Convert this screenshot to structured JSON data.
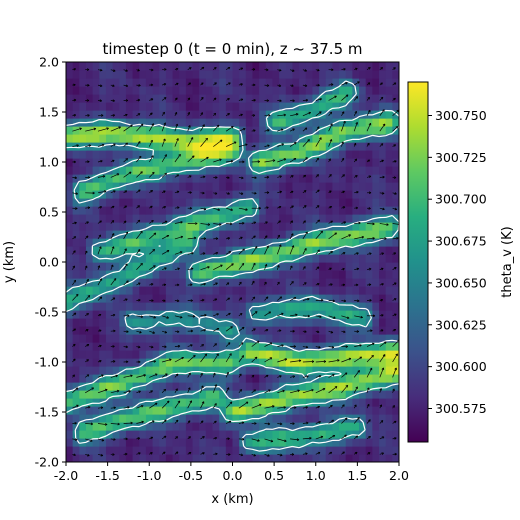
{
  "chart_data": {
    "type": "heatmap",
    "title": "timestep 0 (t = 0 min), z ~ 37.5 m",
    "xlabel": "x (km)",
    "ylabel": "y (km)",
    "xlim": [
      -2.0,
      2.0
    ],
    "ylim": [
      -2.0,
      2.0
    ],
    "x_ticks": [
      "-2.0",
      "-1.5",
      "-1.0",
      "-0.5",
      "0.0",
      "0.5",
      "1.0",
      "1.5",
      "2.0"
    ],
    "y_ticks": [
      "-2.0",
      "-1.5",
      "-1.0",
      "-0.5",
      "0.0",
      "0.5",
      "1.0",
      "1.5",
      "2.0"
    ],
    "colorbar": {
      "label": "theta_v (K)",
      "range": [
        300.555,
        300.77
      ],
      "ticks": [
        "300.575",
        "300.600",
        "300.625",
        "300.650",
        "300.675",
        "300.700",
        "300.725",
        "300.750"
      ],
      "colormap": "viridis"
    },
    "overlays": {
      "contour_color": "#ffffff",
      "wind_vectors": true,
      "vector_color": "#000000"
    },
    "streaks": [
      {
        "x": [
          -2.0,
          -1.5,
          -1.0,
          -0.5,
          0.0
        ],
        "y": [
          1.25,
          1.3,
          1.25,
          1.2,
          1.25
        ],
        "strength": 0.9
      },
      {
        "x": [
          -1.8,
          -1.2,
          -0.6,
          0.0
        ],
        "y": [
          0.7,
          0.9,
          1.0,
          1.1
        ],
        "strength": 0.7
      },
      {
        "x": [
          0.3,
          0.8,
          1.3,
          1.9
        ],
        "y": [
          1.0,
          1.1,
          1.3,
          1.4
        ],
        "strength": 0.8
      },
      {
        "x": [
          0.5,
          0.9,
          1.4
        ],
        "y": [
          1.4,
          1.5,
          1.7
        ],
        "strength": 0.6
      },
      {
        "x": [
          -1.6,
          -1.0,
          -0.4,
          0.2
        ],
        "y": [
          0.1,
          0.25,
          0.4,
          0.55
        ],
        "strength": 0.65
      },
      {
        "x": [
          -2.0,
          -1.2,
          -0.5
        ],
        "y": [
          -0.4,
          -0.1,
          0.2
        ],
        "strength": 0.55
      },
      {
        "x": [
          -0.4,
          0.4,
          1.0,
          1.9
        ],
        "y": [
          -0.1,
          0.05,
          0.2,
          0.35
        ],
        "strength": 0.8
      },
      {
        "x": [
          -2.0,
          -1.3,
          -0.7,
          0.0
        ],
        "y": [
          -1.4,
          -1.2,
          -1.0,
          -1.0
        ],
        "strength": 0.75
      },
      {
        "x": [
          -1.8,
          -1.0,
          -0.2
        ],
        "y": [
          -1.7,
          -1.5,
          -1.35
        ],
        "strength": 0.7
      },
      {
        "x": [
          0.2,
          0.8,
          1.4,
          2.0
        ],
        "y": [
          -0.9,
          -1.0,
          -0.95,
          -0.9
        ],
        "strength": 0.9
      },
      {
        "x": [
          0.0,
          0.7,
          1.3,
          2.0
        ],
        "y": [
          -1.5,
          -1.35,
          -1.25,
          -1.1
        ],
        "strength": 0.85
      },
      {
        "x": [
          0.3,
          1.0,
          1.6
        ],
        "y": [
          -0.5,
          -0.45,
          -0.55
        ],
        "strength": 0.55
      },
      {
        "x": [
          0.2,
          0.8,
          1.5
        ],
        "y": [
          -1.8,
          -1.75,
          -1.65
        ],
        "strength": 0.6
      },
      {
        "x": [
          -1.2,
          -0.6,
          0.0
        ],
        "y": [
          -0.6,
          -0.55,
          -0.7
        ],
        "strength": 0.45
      }
    ]
  }
}
